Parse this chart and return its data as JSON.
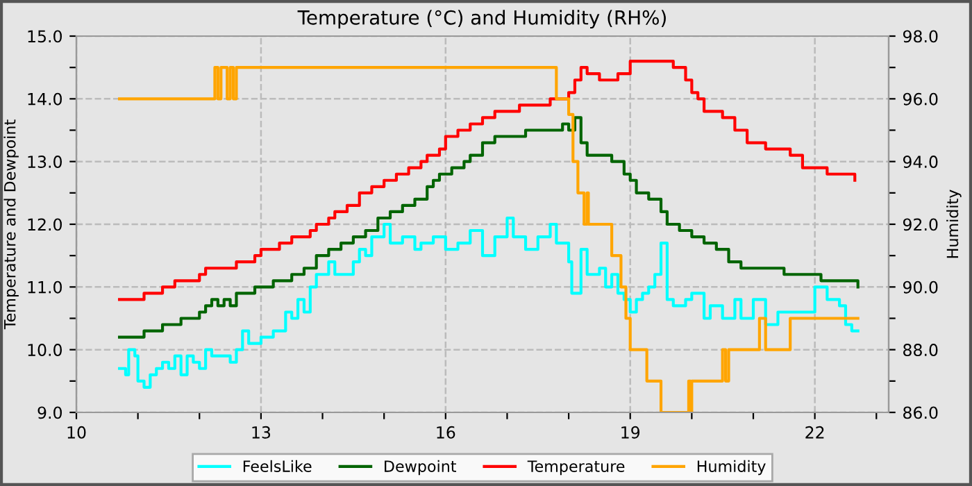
{
  "chart_data": {
    "type": "step",
    "title": "Temperature (°C) and Humidity (RH%)",
    "ylabel": "Temperature and Dewpoint",
    "y2label": "Humidity",
    "xlim": [
      10,
      23.2
    ],
    "xticks": [
      {
        "value": 10,
        "label": "10"
      },
      {
        "value": 11,
        "label": null
      },
      {
        "value": 12,
        "label": null
      },
      {
        "value": 13,
        "label": "13"
      },
      {
        "value": 14,
        "label": null
      },
      {
        "value": 15,
        "label": null
      },
      {
        "value": 16,
        "label": "16"
      },
      {
        "value": 17,
        "label": null
      },
      {
        "value": 18,
        "label": null
      },
      {
        "value": 19,
        "label": "19"
      },
      {
        "value": 20,
        "label": null
      },
      {
        "value": 21,
        "label": null
      },
      {
        "value": 22,
        "label": "22"
      },
      {
        "value": 23,
        "label": null
      }
    ],
    "ylim": [
      9,
      15
    ],
    "yticks": [
      {
        "value": 9,
        "label": "9.0"
      },
      {
        "value": 9.5,
        "label": null
      },
      {
        "value": 10,
        "label": "10.0"
      },
      {
        "value": 10.5,
        "label": null
      },
      {
        "value": 11,
        "label": "11.0"
      },
      {
        "value": 11.5,
        "label": null
      },
      {
        "value": 12,
        "label": "12.0"
      },
      {
        "value": 12.5,
        "label": null
      },
      {
        "value": 13,
        "label": "13.0"
      },
      {
        "value": 13.5,
        "label": null
      },
      {
        "value": 14,
        "label": "14.0"
      },
      {
        "value": 14.5,
        "label": null
      },
      {
        "value": 15,
        "label": "15.0"
      }
    ],
    "y2lim": [
      86,
      98
    ],
    "y2ticks": [
      {
        "value": 86,
        "label": "86.0"
      },
      {
        "value": 87,
        "label": null
      },
      {
        "value": 88,
        "label": "88.0"
      },
      {
        "value": 89,
        "label": null
      },
      {
        "value": 90,
        "label": "90.0"
      },
      {
        "value": 91,
        "label": null
      },
      {
        "value": 92,
        "label": "92.0"
      },
      {
        "value": 93,
        "label": null
      },
      {
        "value": 94,
        "label": "94.0"
      },
      {
        "value": 95,
        "label": null
      },
      {
        "value": 96,
        "label": "96.0"
      },
      {
        "value": 97,
        "label": null
      },
      {
        "value": 98,
        "label": "98.0"
      }
    ],
    "grid": true,
    "legend": "bottom",
    "series": [
      {
        "name": "FeelsLike",
        "color": "#00ffff",
        "x": [
          10.7,
          10.8,
          10.85,
          10.95,
          11.0,
          11.1,
          11.2,
          11.3,
          11.4,
          11.5,
          11.6,
          11.7,
          11.8,
          11.9,
          12.0,
          12.1,
          12.2,
          12.4,
          12.5,
          12.6,
          12.7,
          12.8,
          13.0,
          13.2,
          13.4,
          13.5,
          13.6,
          13.7,
          13.8,
          13.9,
          14.0,
          14.1,
          14.2,
          14.4,
          14.5,
          14.6,
          14.7,
          14.8,
          14.9,
          15.0,
          15.1,
          15.3,
          15.5,
          15.6,
          15.8,
          16.0,
          16.2,
          16.4,
          16.6,
          16.8,
          17.0,
          17.1,
          17.3,
          17.5,
          17.7,
          17.8,
          18.0,
          18.05,
          18.2,
          18.3,
          18.5,
          18.6,
          18.7,
          18.8,
          18.9,
          19.0,
          19.1,
          19.2,
          19.3,
          19.4,
          19.5,
          19.6,
          19.7,
          19.9,
          20.0,
          20.2,
          20.3,
          20.5,
          20.7,
          20.8,
          21.0,
          21.2,
          21.4,
          21.6,
          21.8,
          22.0,
          22.2,
          22.4,
          22.5,
          22.6,
          22.7
        ],
        "values": [
          9.7,
          9.6,
          10.0,
          9.9,
          9.5,
          9.4,
          9.6,
          9.7,
          9.8,
          9.7,
          9.9,
          9.6,
          9.9,
          9.8,
          9.7,
          10.0,
          9.9,
          9.9,
          9.8,
          10.0,
          10.3,
          10.1,
          10.2,
          10.3,
          10.6,
          10.5,
          10.8,
          10.6,
          11.0,
          11.2,
          11.2,
          11.4,
          11.2,
          11.2,
          11.4,
          11.6,
          11.5,
          11.8,
          11.8,
          12.0,
          11.7,
          11.8,
          11.6,
          11.7,
          11.8,
          11.6,
          11.7,
          11.9,
          11.5,
          11.8,
          12.1,
          11.8,
          11.6,
          11.8,
          12.0,
          11.7,
          11.4,
          10.9,
          11.6,
          11.2,
          11.3,
          11.0,
          11.2,
          10.9,
          10.8,
          10.6,
          10.8,
          10.9,
          11.0,
          11.2,
          11.7,
          10.8,
          10.7,
          10.8,
          10.9,
          10.5,
          10.7,
          10.5,
          10.8,
          10.5,
          10.8,
          10.4,
          10.6,
          10.6,
          10.6,
          11.0,
          10.8,
          10.7,
          10.4,
          10.3,
          10.3
        ]
      },
      {
        "name": "Dewpoint",
        "color": "#006400",
        "x": [
          10.7,
          11.1,
          11.4,
          11.7,
          12.0,
          12.1,
          12.2,
          12.3,
          12.4,
          12.5,
          12.6,
          12.9,
          13.2,
          13.5,
          13.7,
          13.9,
          14.1,
          14.3,
          14.5,
          14.7,
          14.9,
          15.1,
          15.3,
          15.5,
          15.7,
          15.8,
          15.9,
          16.1,
          16.3,
          16.4,
          16.6,
          16.8,
          17.3,
          17.9,
          18.0,
          18.1,
          18.2,
          18.3,
          18.7,
          18.9,
          19.0,
          19.1,
          19.3,
          19.5,
          19.6,
          19.8,
          20.0,
          20.2,
          20.4,
          20.6,
          20.8,
          21.5,
          22.1,
          22.7
        ],
        "values": [
          10.2,
          10.3,
          10.4,
          10.5,
          10.6,
          10.7,
          10.8,
          10.7,
          10.8,
          10.7,
          10.9,
          11.0,
          11.1,
          11.2,
          11.3,
          11.5,
          11.6,
          11.7,
          11.8,
          11.9,
          12.1,
          12.2,
          12.3,
          12.4,
          12.6,
          12.7,
          12.8,
          12.9,
          13.0,
          13.1,
          13.3,
          13.4,
          13.5,
          13.6,
          13.5,
          13.7,
          13.3,
          13.1,
          13.0,
          12.8,
          12.7,
          12.5,
          12.4,
          12.2,
          12.0,
          11.9,
          11.8,
          11.7,
          11.6,
          11.4,
          11.3,
          11.2,
          11.1,
          11.0
        ]
      },
      {
        "name": "Temperature",
        "color": "#ff0000",
        "x": [
          10.7,
          11.1,
          11.4,
          11.6,
          12.0,
          12.1,
          12.6,
          12.9,
          13.0,
          13.3,
          13.5,
          13.8,
          13.9,
          14.1,
          14.2,
          14.4,
          14.6,
          14.8,
          15.0,
          15.2,
          15.4,
          15.6,
          15.7,
          15.9,
          16.0,
          16.2,
          16.4,
          16.6,
          16.8,
          17.2,
          17.7,
          18.0,
          18.1,
          18.2,
          18.3,
          18.5,
          18.8,
          19.0,
          19.5,
          19.7,
          19.9,
          20.0,
          20.1,
          20.2,
          20.5,
          20.7,
          20.9,
          21.2,
          21.6,
          21.8,
          22.2,
          22.65
        ],
        "values": [
          10.8,
          10.9,
          11.0,
          11.1,
          11.2,
          11.3,
          11.4,
          11.5,
          11.6,
          11.7,
          11.8,
          11.9,
          12.0,
          12.1,
          12.2,
          12.3,
          12.5,
          12.6,
          12.7,
          12.8,
          12.9,
          13.0,
          13.1,
          13.2,
          13.4,
          13.5,
          13.6,
          13.7,
          13.8,
          13.9,
          14.0,
          14.1,
          14.3,
          14.5,
          14.4,
          14.3,
          14.4,
          14.6,
          14.6,
          14.5,
          14.3,
          14.1,
          14.0,
          13.8,
          13.7,
          13.5,
          13.3,
          13.2,
          13.1,
          12.9,
          12.8,
          12.7
        ]
      },
      {
        "name": "Humidity",
        "color": "#ffa500",
        "axis": "y2",
        "x": [
          10.7,
          12.2,
          12.25,
          12.3,
          12.35,
          12.45,
          12.5,
          12.55,
          12.6,
          17.8,
          18.0,
          18.07,
          18.15,
          18.25,
          18.3,
          18.32,
          18.7,
          18.85,
          18.93,
          19.0,
          19.27,
          19.5,
          19.95,
          19.98,
          20.0,
          20.5,
          20.55,
          20.6,
          21.1,
          21.2,
          21.6,
          22.7
        ],
        "values": [
          96,
          96,
          97,
          96,
          97,
          96,
          97,
          96,
          97,
          96,
          95.5,
          94,
          93,
          92,
          93,
          92,
          91,
          90,
          89,
          88,
          87,
          86,
          87,
          86,
          87,
          88,
          87,
          88,
          89,
          88,
          89,
          89
        ]
      }
    ]
  }
}
